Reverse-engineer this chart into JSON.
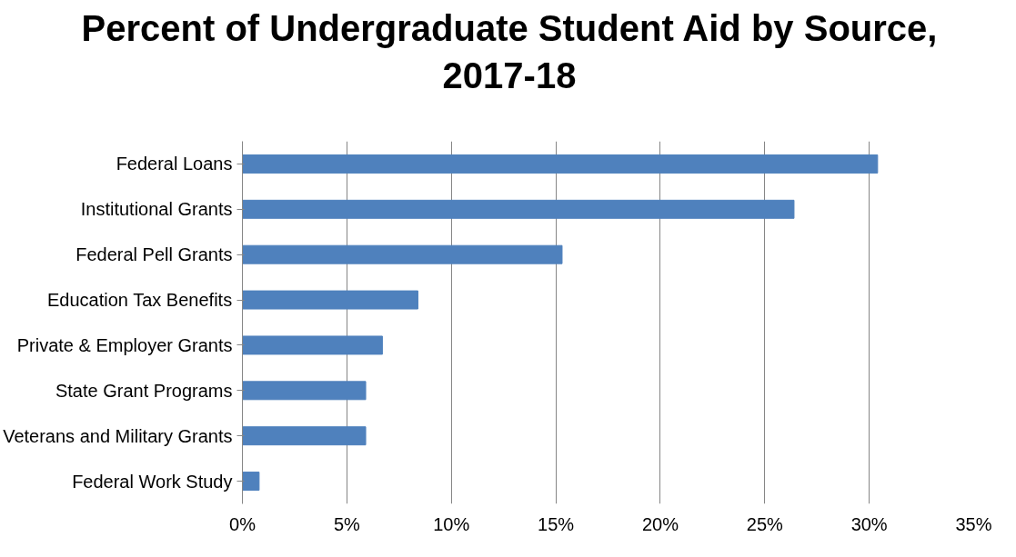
{
  "chart_data": {
    "type": "bar",
    "orientation": "horizontal",
    "title": "Percent of Undergraduate Student Aid by Source, 2017-18",
    "categories": [
      "Federal Loans",
      "Institutional Grants",
      "Federal Pell Grants",
      "Education Tax Benefits",
      "Private & Employer Grants",
      "State Grant Programs",
      "Veterans and Military Grants",
      "Federal Work Study"
    ],
    "values": [
      30.4,
      26.4,
      15.3,
      8.4,
      6.7,
      5.9,
      5.9,
      0.8
    ],
    "color": "#4f81bd",
    "xlim": [
      0,
      35
    ],
    "xticks": [
      {
        "value": 0,
        "label": "0%"
      },
      {
        "value": 5,
        "label": "5%"
      },
      {
        "value": 10,
        "label": "10%"
      },
      {
        "value": 15,
        "label": "15%"
      },
      {
        "value": 20,
        "label": "20%"
      },
      {
        "value": 25,
        "label": "25%"
      },
      {
        "value": 30,
        "label": "30%"
      },
      {
        "value": 35,
        "label": "35%"
      }
    ],
    "grid": "x"
  }
}
